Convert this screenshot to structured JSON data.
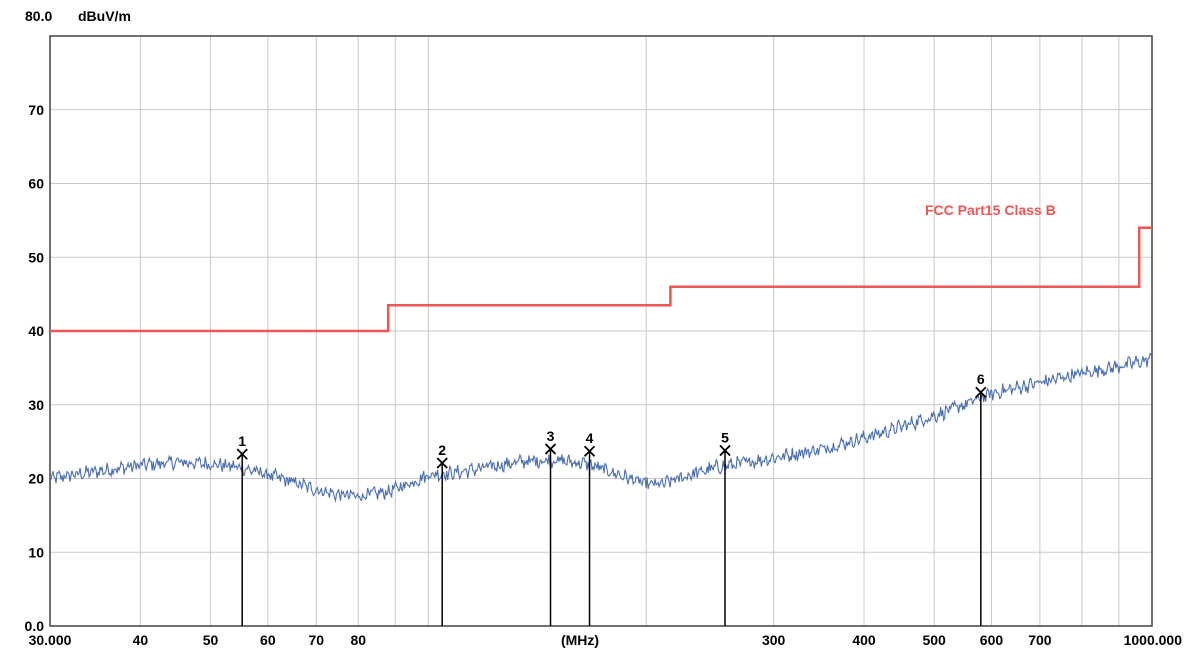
{
  "chart_data": {
    "type": "line",
    "x_scale": "log",
    "y_unit": "dBuV/m",
    "x_unit": "(MHz)",
    "xlim": [
      30,
      1000
    ],
    "ylim": [
      0,
      80
    ],
    "y_top_label": "80.0",
    "y_ticks": [
      {
        "value": 70,
        "label": "70"
      },
      {
        "value": 60,
        "label": "60"
      },
      {
        "value": 50,
        "label": "50"
      },
      {
        "value": 40,
        "label": "40"
      },
      {
        "value": 30,
        "label": "30"
      },
      {
        "value": 20,
        "label": "20"
      },
      {
        "value": 10,
        "label": "10"
      },
      {
        "value": 0,
        "label": "0.0"
      }
    ],
    "x_ticks": [
      {
        "value": 30,
        "label": "30.000"
      },
      {
        "value": 40,
        "label": "40"
      },
      {
        "value": 50,
        "label": "50"
      },
      {
        "value": 60,
        "label": "60"
      },
      {
        "value": 70,
        "label": "70"
      },
      {
        "value": 80,
        "label": "80"
      },
      {
        "value": 300,
        "label": "300"
      },
      {
        "value": 400,
        "label": "400"
      },
      {
        "value": 500,
        "label": "500"
      },
      {
        "value": 600,
        "label": "600"
      },
      {
        "value": 700,
        "label": "700"
      },
      {
        "value": 1000,
        "label": "1000.000"
      }
    ],
    "x_gridlines": [
      30,
      40,
      50,
      60,
      70,
      80,
      90,
      100,
      200,
      300,
      400,
      500,
      600,
      700,
      800,
      900,
      1000
    ],
    "y_gridlines": [
      0,
      10,
      20,
      30,
      40,
      50,
      60,
      70,
      80
    ],
    "grid": true,
    "colors": {
      "limit": "#ee5555",
      "trace": "#4a6fb0",
      "marker": "#000000",
      "grid": "#c8c8c8"
    },
    "limit_line": {
      "name": "FCC Part15 Class B",
      "points": [
        [
          30,
          40
        ],
        [
          88,
          40
        ],
        [
          88,
          43.5
        ],
        [
          216,
          43.5
        ],
        [
          216,
          46
        ],
        [
          960,
          46
        ],
        [
          960,
          54
        ],
        [
          1000,
          54
        ]
      ]
    },
    "trace": {
      "points": [
        [
          30,
          20
        ],
        [
          35,
          21
        ],
        [
          40,
          21.8
        ],
        [
          45,
          22.2
        ],
        [
          50,
          22
        ],
        [
          55,
          21.5
        ],
        [
          60,
          20.5
        ],
        [
          65,
          19.5
        ],
        [
          70,
          18.5
        ],
        [
          75,
          17.8
        ],
        [
          80,
          17.6
        ],
        [
          88,
          18.2
        ],
        [
          95,
          19.5
        ],
        [
          100,
          20.5
        ],
        [
          110,
          20.8
        ],
        [
          120,
          21.5
        ],
        [
          135,
          22.3
        ],
        [
          150,
          22.5
        ],
        [
          165,
          22
        ],
        [
          180,
          20.8
        ],
        [
          200,
          19.2
        ],
        [
          210,
          19.2
        ],
        [
          230,
          20.5
        ],
        [
          250,
          21.5
        ],
        [
          300,
          22.8
        ],
        [
          350,
          24
        ],
        [
          400,
          25.5
        ],
        [
          450,
          27
        ],
        [
          500,
          28.5
        ],
        [
          550,
          30
        ],
        [
          600,
          31.5
        ],
        [
          700,
          33
        ],
        [
          800,
          34.3
        ],
        [
          900,
          35.2
        ],
        [
          1000,
          36.2
        ]
      ]
    },
    "markers": [
      {
        "label": "1",
        "x": 55.3,
        "y": 23.3
      },
      {
        "label": "2",
        "x": 104.5,
        "y": 22.1
      },
      {
        "label": "3",
        "x": 147.5,
        "y": 24
      },
      {
        "label": "4",
        "x": 167,
        "y": 23.7
      },
      {
        "label": "5",
        "x": 257,
        "y": 23.8
      },
      {
        "label": "6",
        "x": 580,
        "y": 31.7
      }
    ]
  }
}
